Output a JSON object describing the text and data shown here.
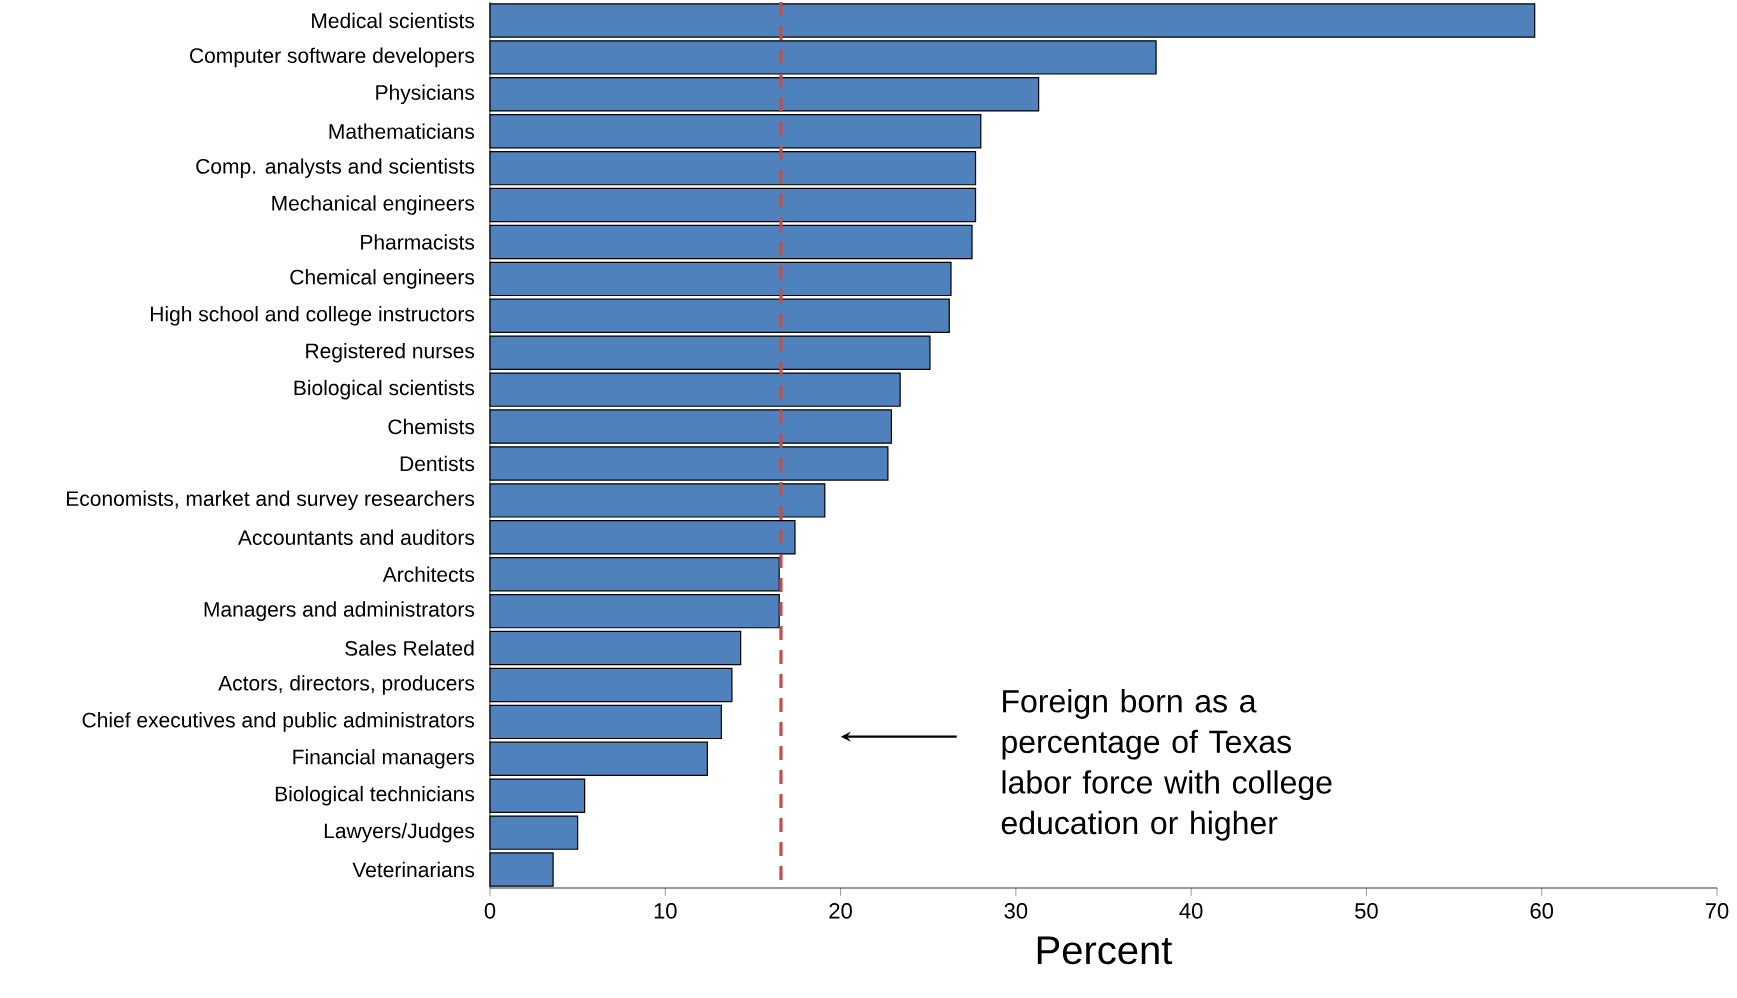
{
  "chart_data": {
    "type": "bar",
    "orientation": "horizontal",
    "xlabel": "Percent",
    "categories": [
      "Medical scientists",
      "Computer software developers",
      "Physicians",
      "Mathematicians",
      "Comp. analysts and scientists",
      "Mechanical engineers",
      "Pharmacists",
      "Chemical engineers",
      "High school and college instructors",
      "Registered nurses",
      "Biological scientists",
      "Chemists",
      "Dentists",
      "Economists, market and survey researchers",
      "Accountants and auditors",
      "Architects",
      "Managers and administrators",
      "Sales Related",
      "Actors, directors, producers",
      "Chief executives and public administrators",
      "Financial managers",
      "Biological technicians",
      "Lawyers/Judges",
      "Veterinarians"
    ],
    "values": [
      59.6,
      38.0,
      31.3,
      28.0,
      27.7,
      27.7,
      27.5,
      26.3,
      26.2,
      25.1,
      23.4,
      22.9,
      22.7,
      19.1,
      17.4,
      16.5,
      16.5,
      14.3,
      13.8,
      13.2,
      12.4,
      5.4,
      5.0,
      3.6
    ],
    "color": "#4f81bd",
    "xlim": [
      0,
      70
    ],
    "xticks": [
      0,
      10,
      20,
      30,
      40,
      50,
      60,
      70
    ],
    "ref_lines": [
      {
        "axis": "x",
        "value": 16.6,
        "color": "#c0504d",
        "line_style": "dashed"
      }
    ],
    "annotations": [
      "Foreign born as a percentage of Texas labor force with college education or higher"
    ],
    "grid": false
  }
}
